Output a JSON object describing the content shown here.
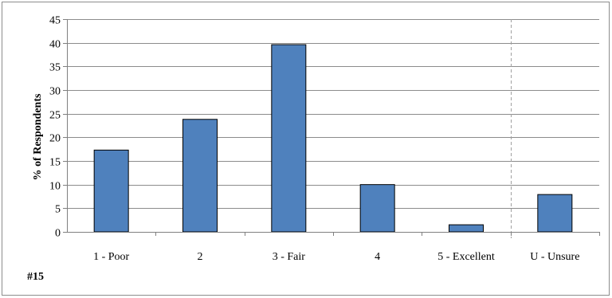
{
  "footer_label": "#15",
  "colors": {
    "bar_fill": "#4f81bd",
    "bar_stroke": "#000000",
    "grid": "#8c8c8c",
    "axis": "#808080",
    "divider": "#a0a0a0"
  },
  "chart_data": {
    "type": "bar",
    "title": "",
    "xlabel": "",
    "ylabel": "% of Respondents",
    "ylim": [
      0,
      45
    ],
    "yticks": [
      0,
      5,
      10,
      15,
      20,
      25,
      30,
      35,
      40,
      45
    ],
    "grid": true,
    "categories": [
      "1 - Poor",
      "2",
      "3 - Fair",
      "4",
      "5 - Excellent",
      "U - Unsure"
    ],
    "values": [
      17.3,
      23.8,
      39.6,
      10.0,
      1.5,
      7.9
    ],
    "separator_before": "U - Unsure"
  }
}
